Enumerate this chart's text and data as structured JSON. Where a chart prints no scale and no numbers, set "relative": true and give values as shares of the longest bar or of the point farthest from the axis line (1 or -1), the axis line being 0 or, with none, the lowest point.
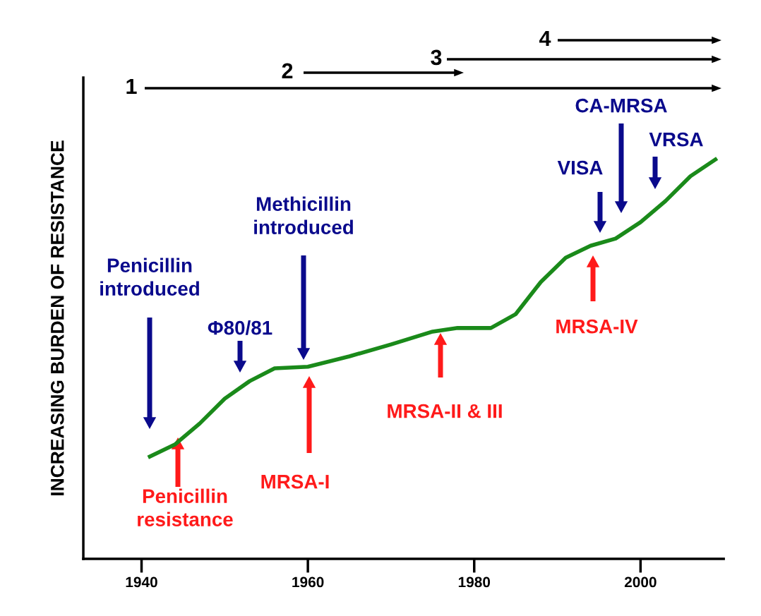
{
  "chart_data": {
    "type": "line",
    "relative": true,
    "ylabel": "INCREASING BURDEN OF RESISTANCE",
    "x": [
      1941,
      1944,
      1947,
      1950,
      1953,
      1956,
      1960,
      1965,
      1970,
      1975,
      1978,
      1982,
      1985,
      1988,
      1991,
      1994,
      1997,
      2000,
      2003,
      2006,
      2009
    ],
    "series": [
      {
        "color": "#1a8a1a",
        "values": [
          0.256,
          0.286,
          0.339,
          0.401,
          0.445,
          0.477,
          0.481,
          0.507,
          0.537,
          0.569,
          0.578,
          0.578,
          0.613,
          0.693,
          0.754,
          0.784,
          0.802,
          0.843,
          0.896,
          0.958,
          1.0
        ]
      }
    ],
    "xlim": [
      1933,
      2010
    ],
    "xticks": [
      1940,
      1960,
      1980,
      2000
    ],
    "marker": "none",
    "line_style": "solid",
    "grid": false,
    "annotations": [
      "Penicillin\nintroduced",
      "Φ80/81",
      "Methicillin\nintroduced",
      "VISA",
      "CA-MRSA",
      "VRSA",
      "Penicillin\nresistance",
      "MRSA-I",
      "MRSA-II & III",
      "MRSA-IV",
      "1",
      "2",
      "3",
      "4"
    ]
  }
}
